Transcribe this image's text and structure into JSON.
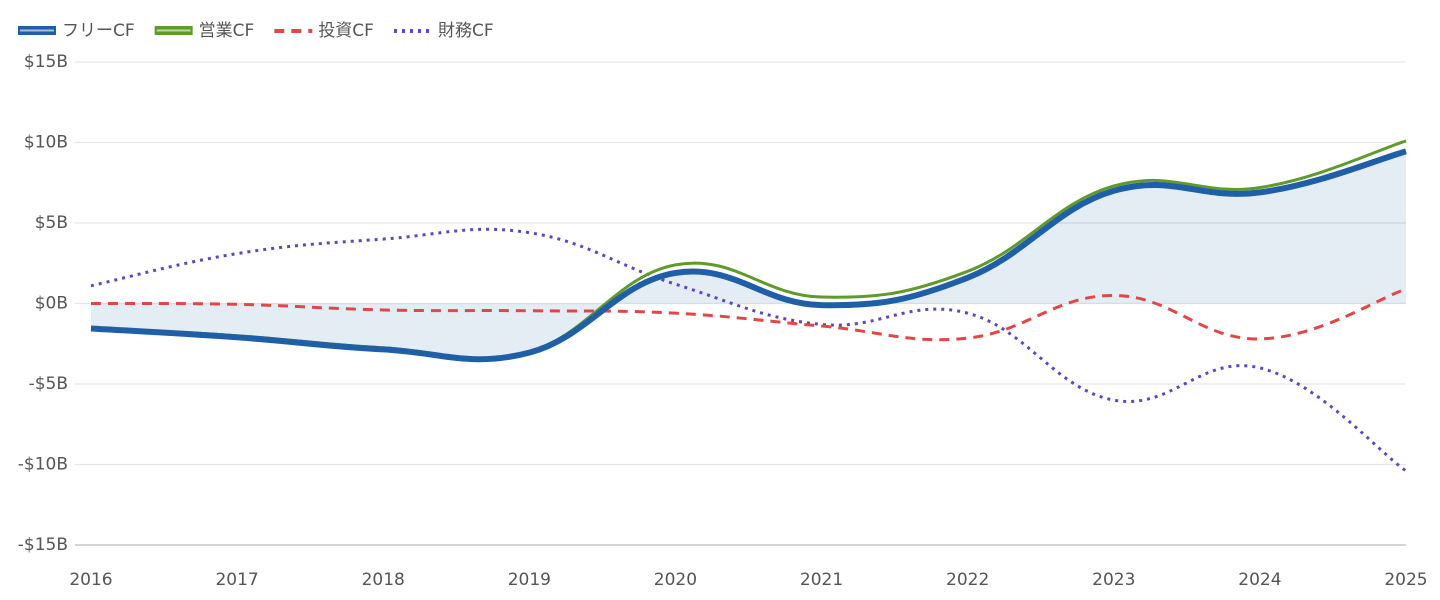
{
  "chart_data": {
    "type": "line",
    "categories": [
      "2016",
      "2017",
      "2018",
      "2019",
      "2020",
      "2021",
      "2022",
      "2023",
      "2024",
      "2025"
    ],
    "series": [
      {
        "name": "フリーCF",
        "color": "#1f5fa8",
        "dash": "solid",
        "fill": true,
        "values": [
          -1.55,
          -2.1,
          -2.85,
          -3.05,
          1.9,
          -0.1,
          1.6,
          7.0,
          6.9,
          9.45
        ]
      },
      {
        "name": "営業CF",
        "color": "#5f9a2a",
        "dash": "solid",
        "fill": false,
        "values": [
          -1.5,
          -2.0,
          -2.75,
          -3.0,
          2.4,
          0.4,
          2.0,
          7.3,
          7.2,
          10.1
        ]
      },
      {
        "name": "投資CF",
        "color": "#e04848",
        "dash": "dashed",
        "fill": false,
        "values": [
          0.0,
          -0.05,
          -0.4,
          -0.45,
          -0.6,
          -1.4,
          -2.15,
          0.5,
          -2.2,
          0.9
        ]
      },
      {
        "name": "財務CF",
        "color": "#5a48c0",
        "dash": "dotted",
        "fill": false,
        "values": [
          1.1,
          3.1,
          4.0,
          4.4,
          1.2,
          -1.3,
          -0.6,
          -6.0,
          -4.0,
          -10.4
        ]
      }
    ],
    "ylim": [
      -15,
      15
    ],
    "yticks": [
      {
        "value": -15,
        "label": "-$15B"
      },
      {
        "value": -10,
        "label": "-$10B"
      },
      {
        "value": -5,
        "label": "-$5B"
      },
      {
        "value": 0,
        "label": "$0B"
      },
      {
        "value": 5,
        "label": "$5B"
      },
      {
        "value": 10,
        "label": "$10B"
      },
      {
        "value": 15,
        "label": "$15B"
      }
    ],
    "grid": true,
    "legend": "top-left"
  }
}
